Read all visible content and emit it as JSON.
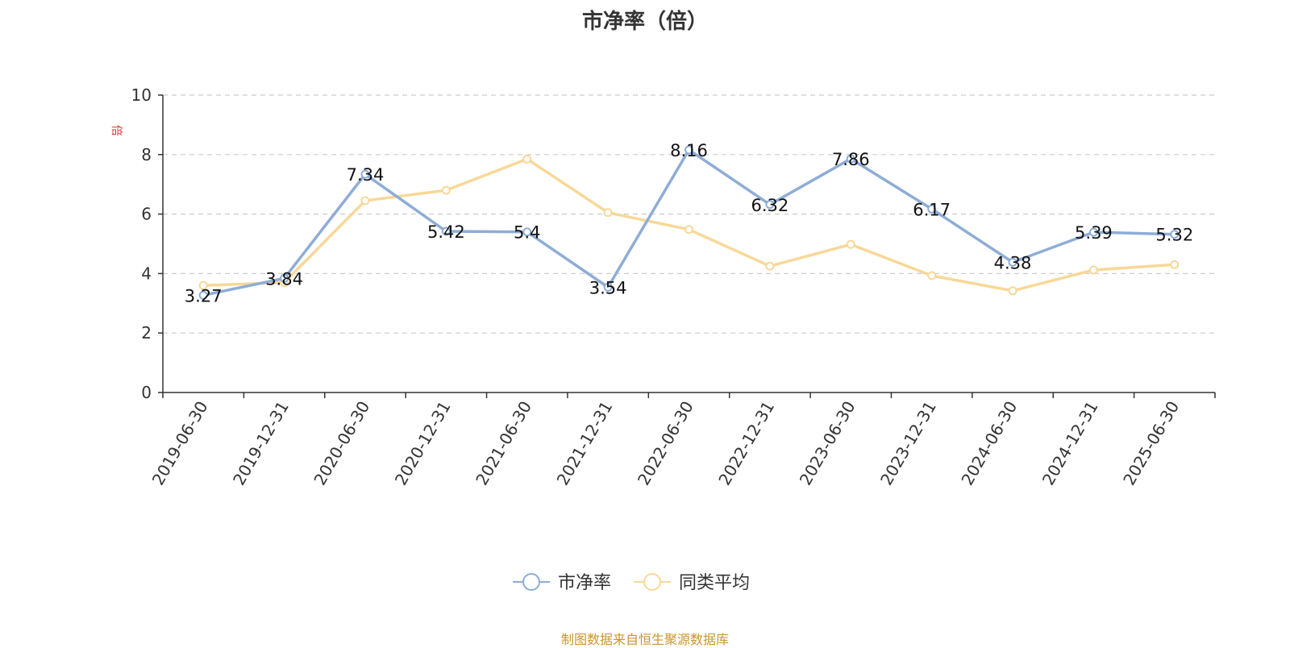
{
  "chart_data": {
    "type": "line",
    "title": "市净率（倍）",
    "ylabel": "倍",
    "ylim": [
      0,
      10
    ],
    "yticks": [
      0,
      2,
      4,
      6,
      8,
      10
    ],
    "grid": true,
    "categories": [
      "2019-06-30",
      "2019-12-31",
      "2020-06-30",
      "2020-12-31",
      "2021-06-30",
      "2021-12-31",
      "2022-06-30",
      "2022-12-31",
      "2023-06-30",
      "2023-12-31",
      "2024-06-30",
      "2024-12-31",
      "2025-06-30"
    ],
    "series": [
      {
        "name": "市净率",
        "color": "#8eadd6",
        "values": [
          3.27,
          3.84,
          7.34,
          5.42,
          5.4,
          3.54,
          8.16,
          6.32,
          7.86,
          6.17,
          4.38,
          5.39,
          5.32
        ],
        "labels": [
          "3.27",
          "3.84",
          "7.34",
          "5.42",
          "5.4",
          "3.54",
          "8.16",
          "6.32",
          "7.86",
          "6.17",
          "4.38",
          "5.39",
          "5.32"
        ]
      },
      {
        "name": "同类平均",
        "color": "#f8d898",
        "values": [
          3.6,
          3.7,
          6.45,
          6.8,
          7.85,
          6.05,
          5.48,
          4.25,
          4.98,
          3.93,
          3.42,
          4.12,
          4.3
        ]
      }
    ],
    "legend_position": "bottom-center",
    "source": "制图数据来自恒生聚源数据库"
  }
}
